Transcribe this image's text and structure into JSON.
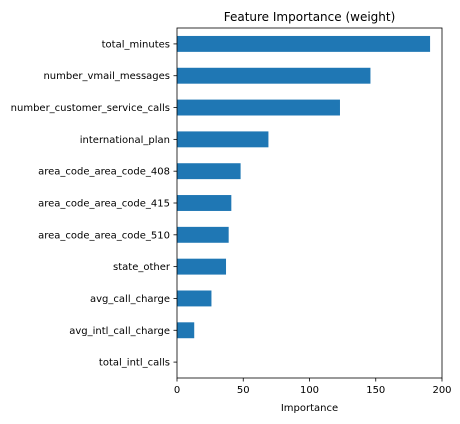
{
  "chart_data": {
    "type": "bar",
    "orientation": "horizontal",
    "title": "Feature Importance (weight)",
    "xlabel": "Importance",
    "ylabel": "",
    "xlim": [
      0,
      200
    ],
    "xticks": [
      0,
      50,
      100,
      150,
      200
    ],
    "categories": [
      "total_minutes",
      "number_vmail_messages",
      "number_customer_service_calls",
      "international_plan",
      "area_code_area_code_408",
      "area_code_area_code_415",
      "area_code_area_code_510",
      "state_other",
      "avg_call_charge",
      "avg_intl_call_charge",
      "total_intl_calls"
    ],
    "values": [
      191,
      146,
      123,
      69,
      48,
      41,
      39,
      37,
      26,
      13,
      0
    ],
    "bar_color": "#1f77b4",
    "grid": false,
    "legend": "none"
  }
}
